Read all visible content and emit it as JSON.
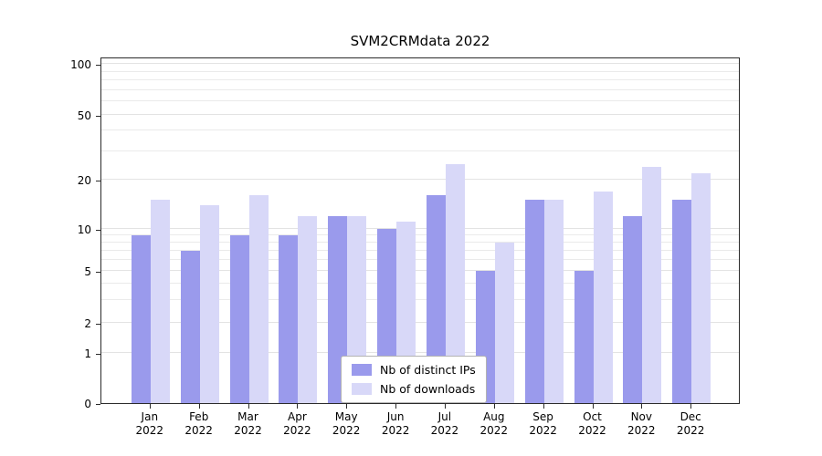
{
  "chart_data": {
    "type": "bar",
    "title": "SVM2CRMdata 2022",
    "categories": [
      "Jan",
      "Feb",
      "Mar",
      "Apr",
      "May",
      "Jun",
      "Jul",
      "Aug",
      "Sep",
      "Oct",
      "Nov",
      "Dec"
    ],
    "year": "2022",
    "series": [
      {
        "name": "Nb of distinct IPs",
        "color": "#9a9aec",
        "values": [
          9,
          7,
          9,
          9,
          12,
          10,
          16,
          5,
          15,
          5,
          12,
          15
        ]
      },
      {
        "name": "Nb of downloads",
        "color": "#d8d8f8",
        "values": [
          15,
          14,
          16,
          12,
          12,
          11,
          25,
          8,
          15,
          17,
          24,
          22
        ]
      }
    ],
    "yticks": [
      0,
      1,
      2,
      5,
      10,
      20,
      50,
      100
    ],
    "minor_gridlines": [
      3,
      4,
      6,
      7,
      8,
      9,
      30,
      40,
      60,
      70,
      80,
      90
    ],
    "yscale": "log-like with 0 baseline",
    "ylim": [
      0,
      110
    ],
    "grid": "horizontal",
    "legend": {
      "position": "lower center inside",
      "entries": [
        "Nb of distinct IPs",
        "Nb of downloads"
      ]
    }
  }
}
